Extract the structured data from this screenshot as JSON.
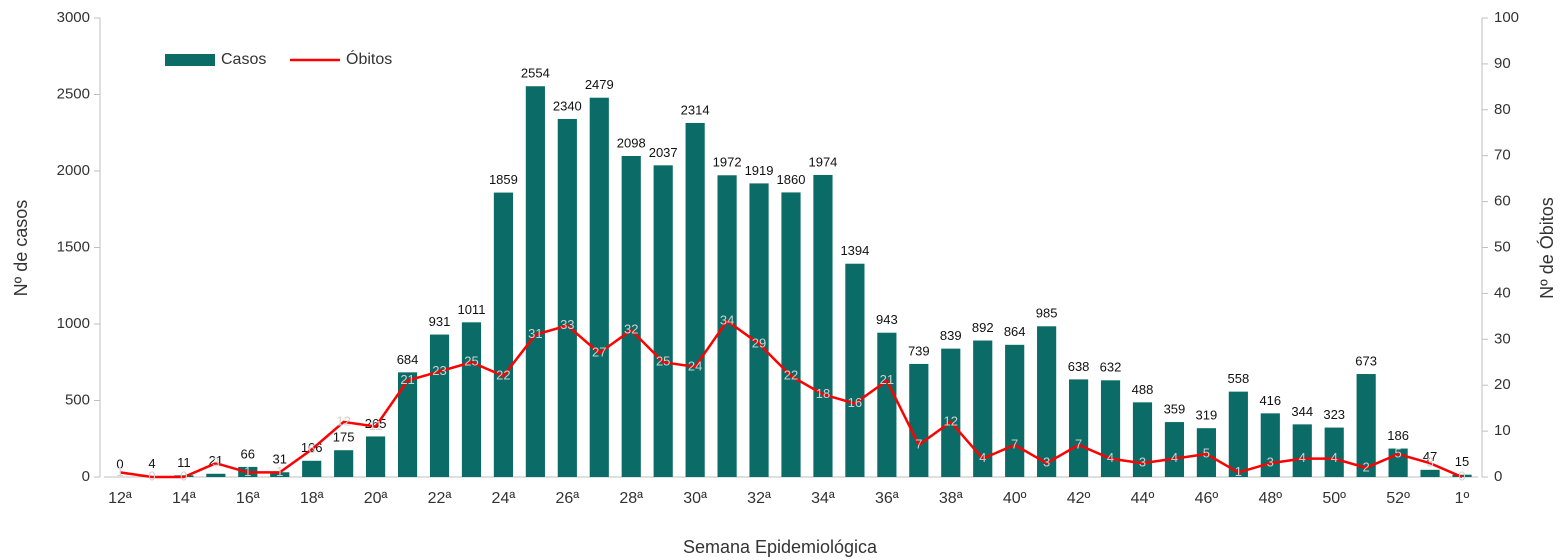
{
  "chart_data": {
    "type": "bar-line",
    "xlabel": "Semana Epidemiológica",
    "ylabel": "Nº de casos",
    "y2label": "Nº de Óbitos",
    "categories": [
      "12ª",
      null,
      "14ª",
      null,
      "16ª",
      null,
      "18ª",
      null,
      "20ª",
      null,
      "22ª",
      null,
      "24ª",
      null,
      "26ª",
      null,
      "28ª",
      null,
      "30ª",
      null,
      "32ª",
      null,
      "34ª",
      null,
      "36ª",
      null,
      "38ª",
      null,
      "40º",
      null,
      "42º",
      null,
      "44º",
      null,
      "46º",
      null,
      "48º",
      null,
      "50º",
      null,
      "52º",
      null,
      "1º"
    ],
    "series": [
      {
        "name": "Casos",
        "type": "bar",
        "color": "#0b6b66",
        "values": [
          0,
          4,
          11,
          21,
          66,
          31,
          106,
          175,
          265,
          684,
          931,
          1011,
          1859,
          2554,
          2340,
          2479,
          2098,
          2037,
          2314,
          1972,
          1919,
          1860,
          1974,
          1394,
          943,
          739,
          839,
          892,
          864,
          985,
          638,
          632,
          488,
          359,
          319,
          558,
          416,
          344,
          323,
          673,
          186,
          47,
          15
        ]
      },
      {
        "name": "Óbitos",
        "type": "line",
        "axis": "y2",
        "color": "#ff0000",
        "values": [
          1,
          0,
          0,
          3,
          1,
          1,
          6,
          12,
          11,
          21,
          23,
          25,
          22,
          31,
          33,
          27,
          32,
          25,
          24,
          34,
          29,
          22,
          18,
          16,
          21,
          7,
          12,
          4,
          7,
          3,
          7,
          4,
          3,
          4,
          5,
          1,
          3,
          4,
          4,
          2,
          5,
          3,
          0
        ]
      }
    ],
    "ylim": [
      0,
      3000
    ],
    "yticks": [
      0,
      500,
      1000,
      1500,
      2000,
      2500,
      3000
    ],
    "y2lim": [
      0,
      100
    ],
    "y2ticks": [
      0,
      10,
      20,
      30,
      40,
      50,
      60,
      70,
      80,
      90,
      100
    ],
    "legend": "upper left"
  }
}
